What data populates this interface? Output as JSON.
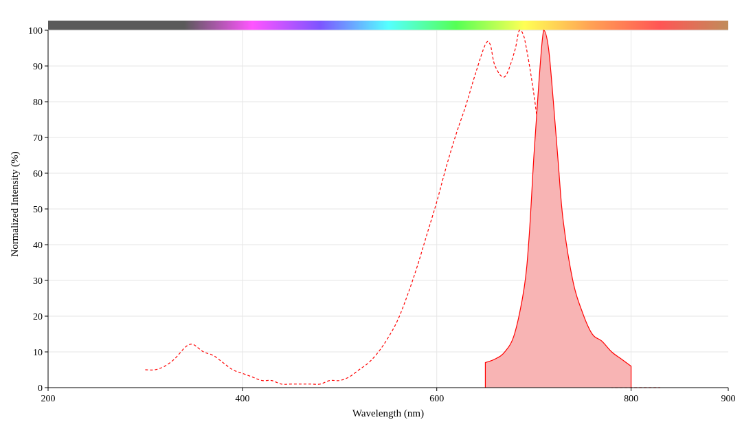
{
  "chart_data": {
    "type": "area",
    "title": "",
    "xlabel": "Wavelength (nm)",
    "ylabel": "Normalized Intensity (%)",
    "xlim": [
      200,
      900
    ],
    "ylim": [
      0,
      100
    ],
    "grid": true,
    "x_ticks": [
      "200",
      "400",
      "600",
      "800",
      "900"
    ],
    "y_ticks": [
      "0",
      "10",
      "20",
      "30",
      "40",
      "50",
      "60",
      "70",
      "80",
      "90",
      "100"
    ],
    "spectrum_bar_colors": [
      "#5a5a5a",
      "#5a5a5a",
      "#5a5a5a",
      "#ff55ff",
      "#7d55ff",
      "#55ffff",
      "#55ff55",
      "#ffff55",
      "#ffa055",
      "#ff5555",
      "#c08c5a"
    ],
    "series": [
      {
        "style": "dashed",
        "color": "#ff0000",
        "x": [
          300,
          310,
          320,
          330,
          340,
          345,
          350,
          360,
          370,
          380,
          390,
          400,
          410,
          420,
          430,
          440,
          450,
          460,
          470,
          480,
          490,
          500,
          510,
          520,
          530,
          540,
          550,
          560,
          570,
          580,
          590,
          600,
          610,
          620,
          630,
          640,
          650,
          655,
          660,
          670,
          680,
          685,
          690,
          700,
          710,
          720,
          730,
          740,
          750,
          760,
          770,
          780,
          790,
          800,
          810,
          820,
          830
        ],
        "y": [
          5,
          5,
          6,
          8,
          11,
          12,
          12,
          10,
          9,
          7,
          5,
          4,
          3,
          2,
          2,
          1,
          1,
          1,
          1,
          1,
          2,
          2,
          3,
          5,
          7,
          10,
          14,
          19,
          26,
          34,
          43,
          52,
          62,
          71,
          79,
          88,
          96,
          96,
          90,
          87,
          94,
          100,
          98,
          82,
          60,
          40,
          23,
          11,
          4,
          2,
          1,
          0,
          0,
          0,
          0,
          0,
          0
        ]
      },
      {
        "style": "filled",
        "color": "#ff0000",
        "fill": "#f8b4b4",
        "x": [
          650,
          660,
          670,
          680,
          690,
          695,
          700,
          705,
          710,
          715,
          720,
          725,
          730,
          740,
          750,
          760,
          770,
          780,
          790,
          800
        ],
        "y": [
          7,
          8,
          10,
          15,
          28,
          42,
          65,
          85,
          100,
          95,
          80,
          63,
          47,
          30,
          21,
          15,
          13,
          10,
          8,
          6
        ]
      }
    ]
  }
}
